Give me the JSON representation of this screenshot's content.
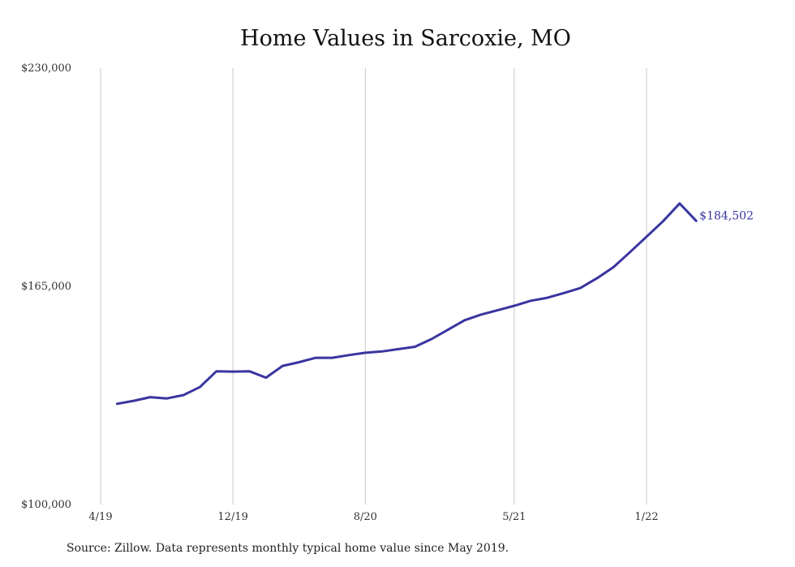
{
  "chart_data": {
    "type": "line",
    "title": "Home Values in Sarcoxie, MO",
    "xlabel": "",
    "ylabel": "",
    "ylim": [
      100000,
      230000
    ],
    "yticks": [
      "$100,000",
      "$165,000",
      "$230,000"
    ],
    "ytick_values": [
      100000,
      165000,
      230000
    ],
    "xticks": [
      "4/19",
      "12/19",
      "8/20",
      "5/21",
      "1/22"
    ],
    "xtick_values": [
      "2019-04",
      "2019-12",
      "2020-08",
      "2021-05",
      "2022-01"
    ],
    "grid": "vertical",
    "line_color": "#3a35a0",
    "series": [
      {
        "x": [
          "2019-05",
          "2019-06",
          "2019-07",
          "2019-08",
          "2019-09",
          "2019-10",
          "2019-11",
          "2019-12",
          "2020-01",
          "2020-02",
          "2020-03",
          "2020-04",
          "2020-05",
          "2020-06",
          "2020-07",
          "2020-08",
          "2020-09",
          "2020-10",
          "2020-11",
          "2020-12",
          "2021-01",
          "2021-02",
          "2021-03",
          "2021-04",
          "2021-05",
          "2021-06",
          "2021-07",
          "2021-08",
          "2021-09",
          "2021-10",
          "2021-11",
          "2021-12",
          "2022-01",
          "2022-02",
          "2022-03",
          "2022-04"
        ],
        "values": [
          130000,
          130900,
          132000,
          131600,
          132600,
          135000,
          139700,
          139600,
          139700,
          137800,
          141300,
          142400,
          143700,
          143700,
          144500,
          145200,
          145600,
          146300,
          147000,
          149300,
          152100,
          154900,
          156600,
          157900,
          159200,
          160700,
          161600,
          163000,
          164500,
          167400,
          170700,
          175200,
          179800,
          184400,
          189700,
          184502
        ]
      }
    ],
    "end_label": "$184,502",
    "source": "Source: Zillow. Data represents monthly typical home value since May 2019."
  }
}
